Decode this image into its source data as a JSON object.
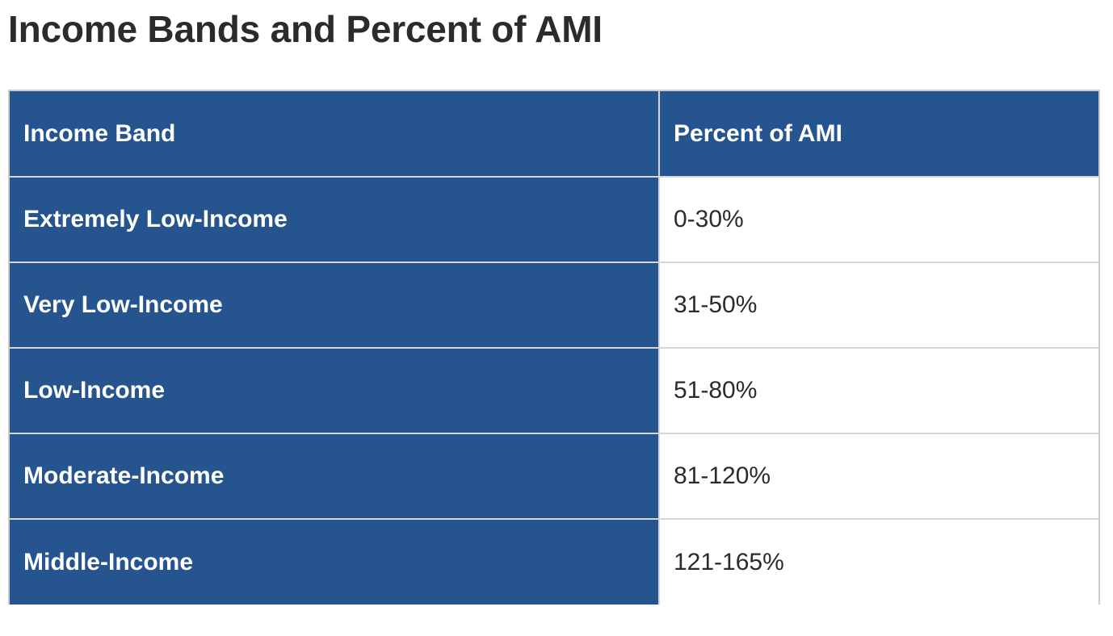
{
  "page": {
    "title": "Income Bands and Percent of AMI"
  },
  "table": {
    "headers": {
      "income_band": "Income Band",
      "percent_of_ami": "Percent of AMI"
    },
    "rows": [
      {
        "band": "Extremely Low-Income",
        "percent": "0-30%"
      },
      {
        "band": "Very Low-Income",
        "percent": "31-50%"
      },
      {
        "band": "Low-Income",
        "percent": "51-80%"
      },
      {
        "band": "Moderate-Income",
        "percent": "81-120%"
      },
      {
        "band": "Middle-Income",
        "percent": "121-165%"
      }
    ]
  },
  "colors": {
    "header_background": "#26548f",
    "band_column_background": "#26548f",
    "band_text": "#ffffff",
    "percent_text": "#2b2b2b",
    "title_text": "#2b2b2b",
    "grid_lines": "#d6d6d6"
  }
}
